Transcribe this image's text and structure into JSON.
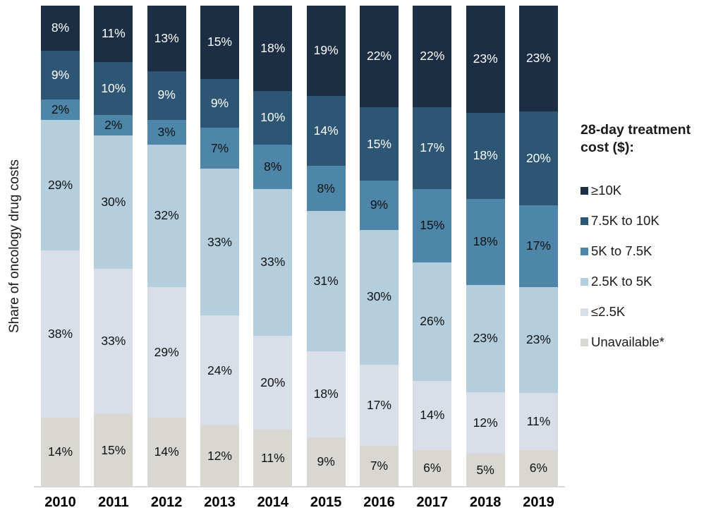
{
  "chart_data": {
    "type": "bar",
    "stacked": true,
    "percent": true,
    "ylabel": "Share of oncology drug costs",
    "value_suffix": "%",
    "categories": [
      "2010",
      "2011",
      "2012",
      "2013",
      "2014",
      "2015",
      "2016",
      "2017",
      "2018",
      "2019"
    ],
    "series": [
      {
        "name": "≥10K",
        "color": "#1c2e43",
        "label_color": "#ffffff",
        "values": [
          8,
          11,
          13,
          15,
          18,
          19,
          22,
          22,
          23,
          23
        ]
      },
      {
        "name": "7.5K to 10K",
        "color": "#2c5674",
        "label_color": "#ffffff",
        "values": [
          9,
          10,
          9,
          9,
          10,
          14,
          15,
          17,
          18,
          20
        ]
      },
      {
        "name": "5K to 7.5K",
        "color": "#4d86a8",
        "label_color": "#111111",
        "values": [
          2,
          2,
          3,
          7,
          8,
          8,
          9,
          15,
          18,
          17
        ]
      },
      {
        "name": "2.5K to 5K",
        "color": "#b4cedd",
        "label_color": "#111111",
        "values": [
          29,
          30,
          32,
          33,
          33,
          31,
          30,
          26,
          23,
          23
        ]
      },
      {
        "name": "≤2.5K",
        "color": "#d8dfe9",
        "label_color": "#111111",
        "values": [
          38,
          33,
          29,
          24,
          20,
          18,
          17,
          14,
          12,
          11
        ]
      },
      {
        "name": "Unavailable*",
        "color": "#d8d7d2",
        "label_color": "#111111",
        "values": [
          14,
          15,
          14,
          12,
          11,
          9,
          7,
          6,
          5,
          6
        ]
      }
    ],
    "legend_title": "28-day treatment cost ($):",
    "legend_position": "right",
    "axis_line_color": "#d8d8d8"
  }
}
